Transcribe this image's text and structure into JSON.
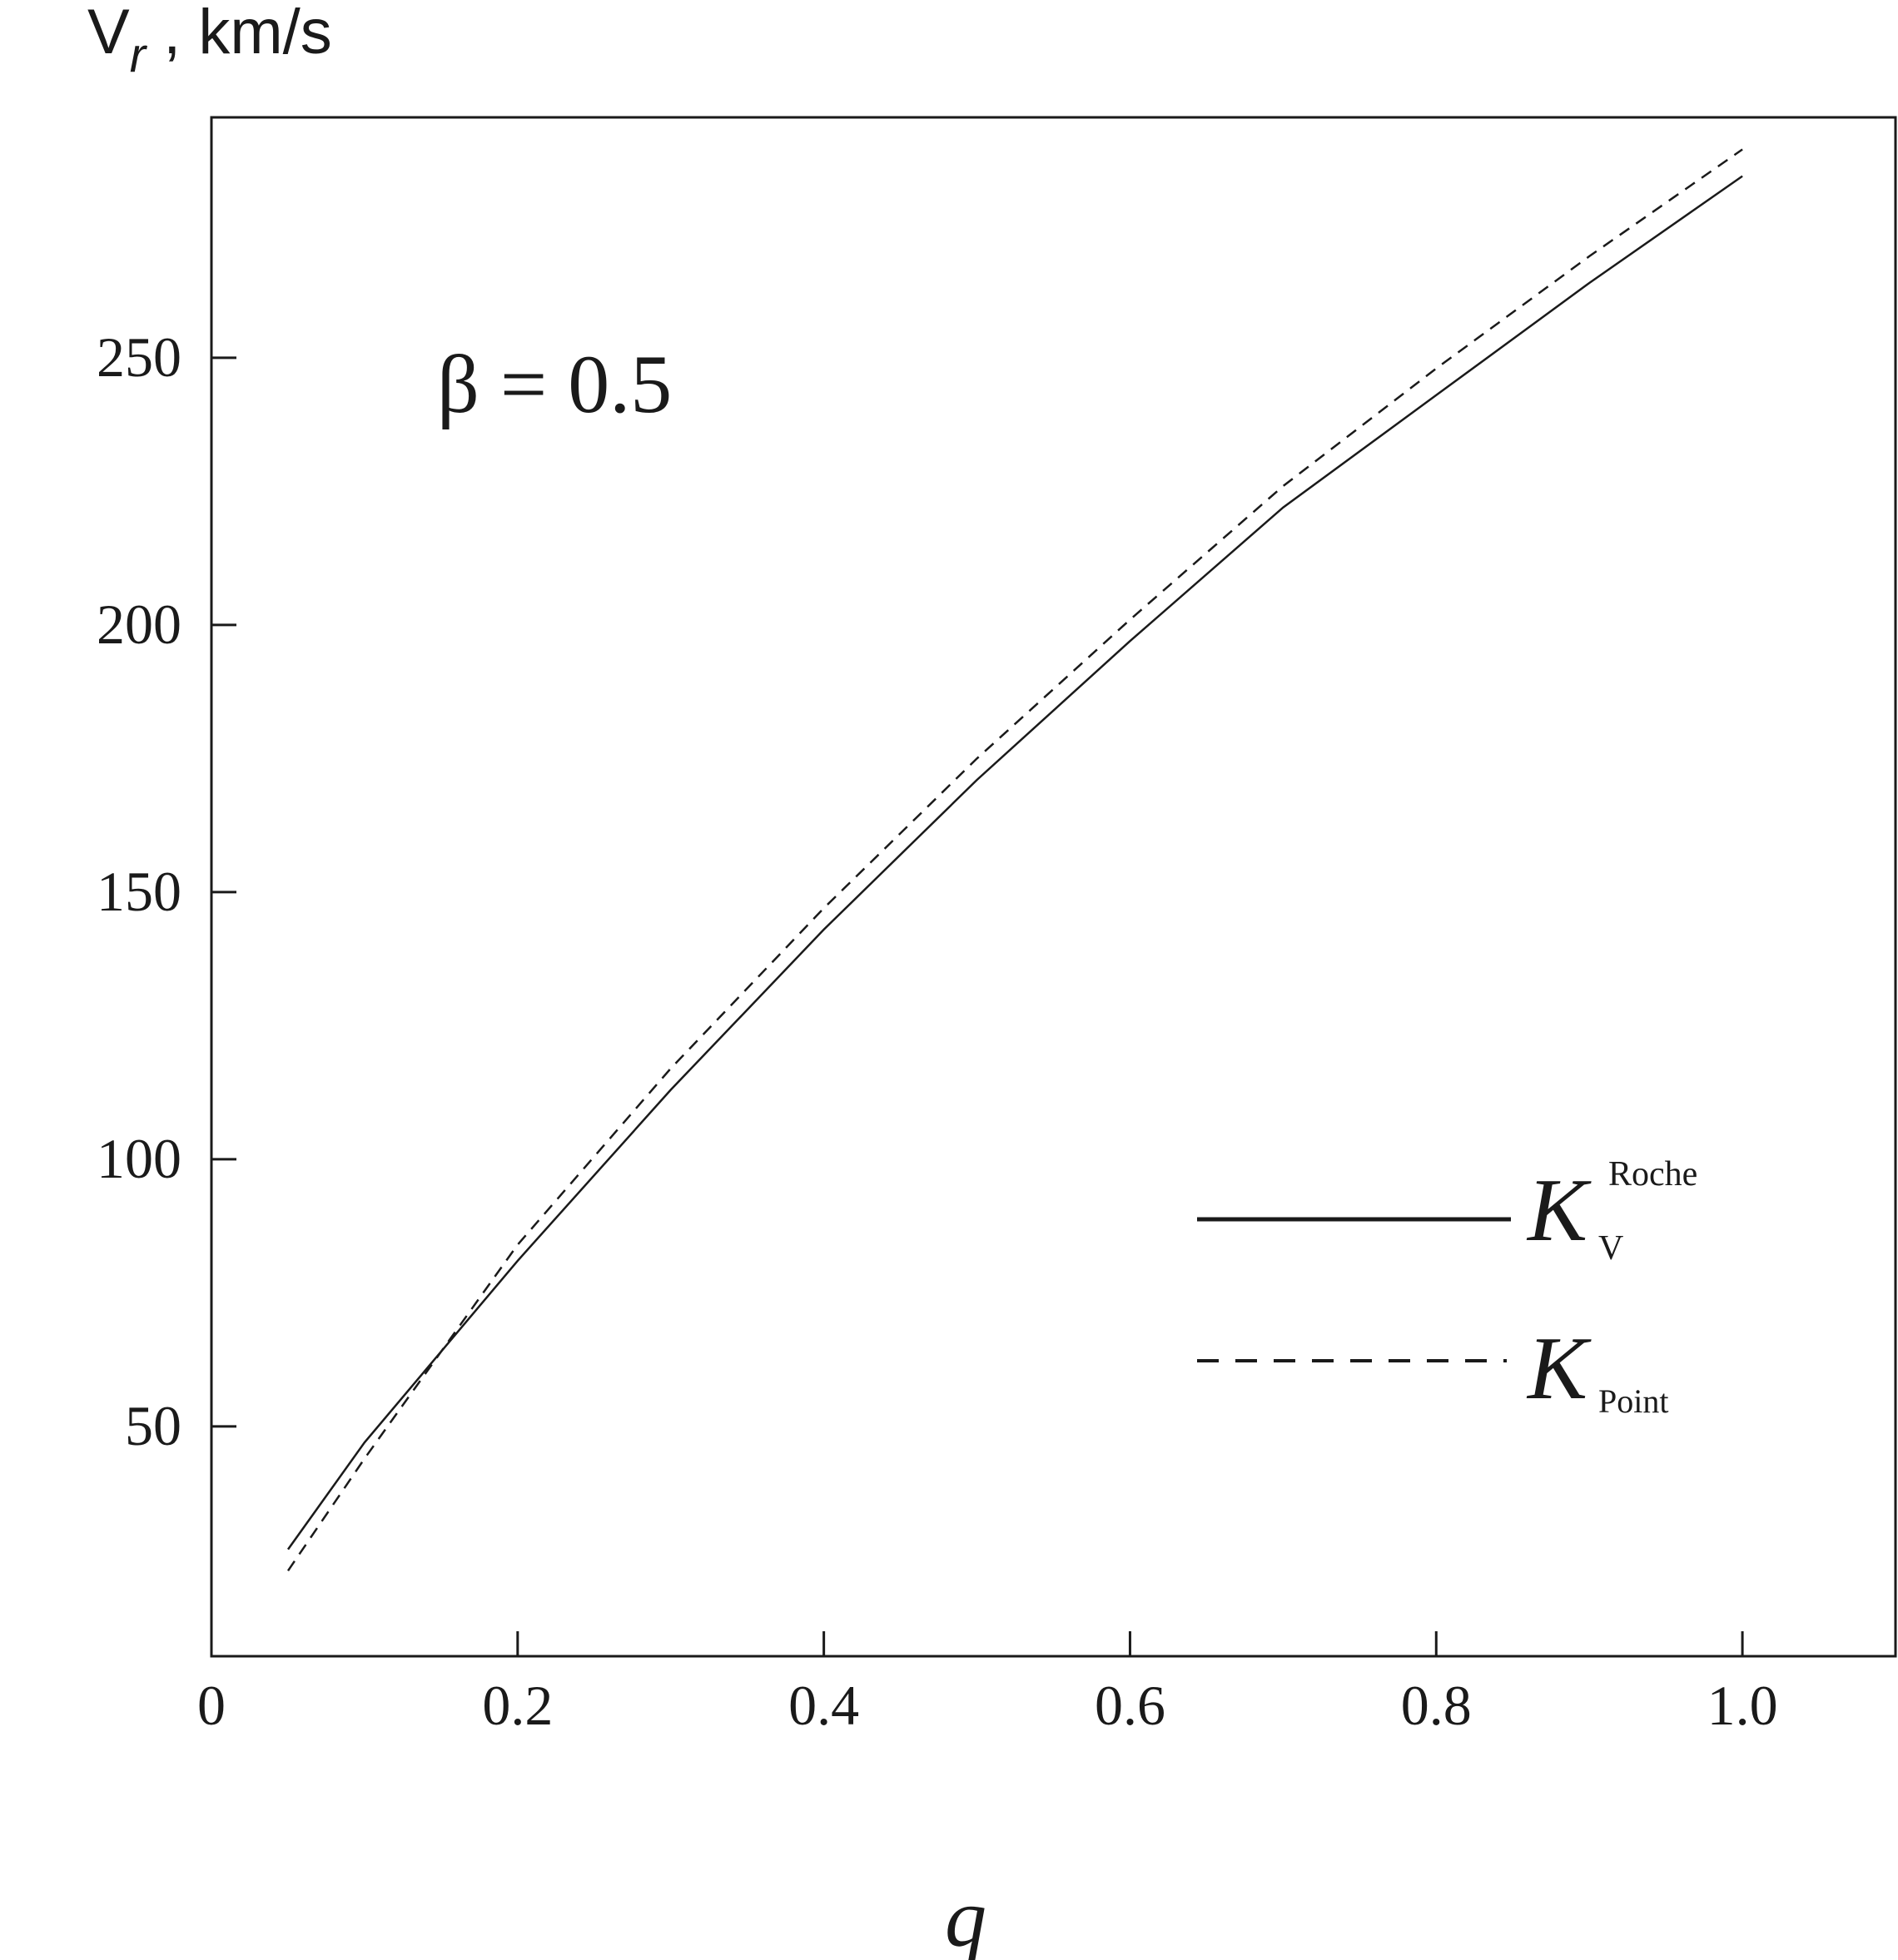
{
  "chart_data": {
    "type": "line",
    "ylabel_main": "V",
    "ylabel_sub": "r",
    "ylabel_unit": " , km/s",
    "xlabel": "q",
    "annotation": "β = 0.5",
    "xlim": [
      0,
      1.1
    ],
    "ylim": [
      7,
      295
    ],
    "x_ticks": [
      0,
      0.2,
      0.4,
      0.6,
      0.8,
      1.0
    ],
    "x_tick_labels": [
      "0",
      "0.2",
      "0.4",
      "0.6",
      "0.8",
      "1.0"
    ],
    "y_ticks": [
      50,
      100,
      150,
      200,
      250
    ],
    "y_tick_labels": [
      "50",
      "100",
      "150",
      "200",
      "250"
    ],
    "grid": false,
    "legend_position": "lower-right",
    "series": [
      {
        "name_main": "K",
        "name_sub": "V",
        "name_sup": "Roche",
        "style": "solid",
        "x": [
          0.05,
          0.1,
          0.2,
          0.3,
          0.4,
          0.5,
          0.6,
          0.7,
          0.8,
          0.9,
          1.0
        ],
        "y": [
          27,
          47,
          81,
          113,
          143,
          171,
          197,
          222,
          243,
          264,
          284
        ]
      },
      {
        "name_main": "K",
        "name_sub": "Point",
        "name_sup": "",
        "style": "dashed",
        "x": [
          0.05,
          0.1,
          0.2,
          0.3,
          0.4,
          0.5,
          0.6,
          0.7,
          0.8,
          0.9,
          1.0
        ],
        "y": [
          23,
          44,
          84,
          117,
          147,
          175,
          201,
          226,
          248,
          269,
          289
        ]
      }
    ]
  }
}
